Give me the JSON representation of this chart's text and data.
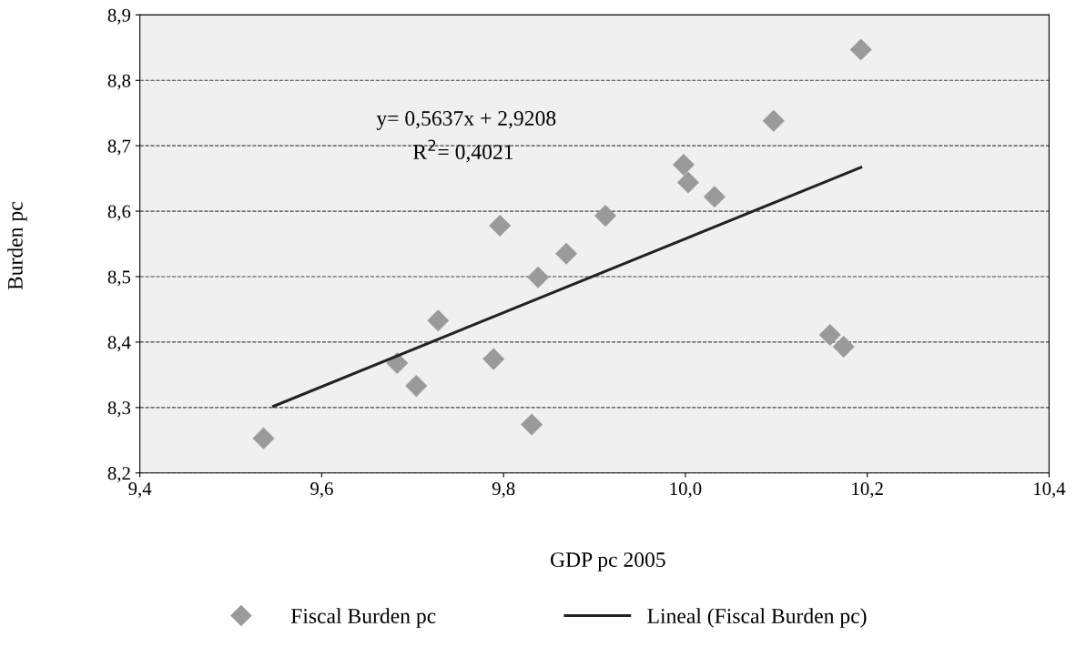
{
  "chart_data": {
    "type": "scatter",
    "xlabel": "GDP pc 2005",
    "ylabel": "Burden pc",
    "series": [
      {
        "name": "Fiscal Burden pc",
        "type": "scatter",
        "color": "#9a9a9a",
        "marker": "diamond",
        "x": [
          9.536,
          9.683,
          9.704,
          9.728,
          9.789,
          9.796,
          9.831,
          9.838,
          9.869,
          9.912,
          9.998,
          10.003,
          10.032,
          10.097,
          10.159,
          10.174,
          10.193
        ],
        "values": [
          8.253,
          8.368,
          8.333,
          8.433,
          8.374,
          8.578,
          8.274,
          8.499,
          8.535,
          8.593,
          8.671,
          8.644,
          8.622,
          8.738,
          8.411,
          8.393,
          8.847
        ]
      },
      {
        "name": "Lineal (Fiscal Burden pc)",
        "type": "line",
        "color": "#222222",
        "marker": "none",
        "line_style": "solid",
        "x": [
          9.547,
          10.193
        ],
        "values": [
          8.302,
          8.667
        ]
      }
    ],
    "xlim": [
      9.4,
      10.4
    ],
    "ylim": [
      8.2,
      8.9
    ],
    "xticks": [
      {
        "value": 9.4,
        "label": "9,4"
      },
      {
        "value": 9.6,
        "label": "9,6"
      },
      {
        "value": 9.8,
        "label": "9,8"
      },
      {
        "value": 10.0,
        "label": "10,0"
      },
      {
        "value": 10.2,
        "label": "10,2"
      },
      {
        "value": 10.4,
        "label": "10,4"
      }
    ],
    "yticks": [
      {
        "value": 8.2,
        "label": "8,2"
      },
      {
        "value": 8.3,
        "label": "8,3"
      },
      {
        "value": 8.4,
        "label": "8,4"
      },
      {
        "value": 8.5,
        "label": "8,5"
      },
      {
        "value": 8.6,
        "label": "8,6"
      },
      {
        "value": 8.7,
        "label": "8,7"
      },
      {
        "value": 8.8,
        "label": "8,8"
      },
      {
        "value": 8.9,
        "label": "8,9"
      }
    ],
    "grid": "y",
    "legend": "bottom",
    "annotations": [
      "y= 0,5637x + 2,9208",
      "R$^{2}$= 0,4021"
    ]
  }
}
